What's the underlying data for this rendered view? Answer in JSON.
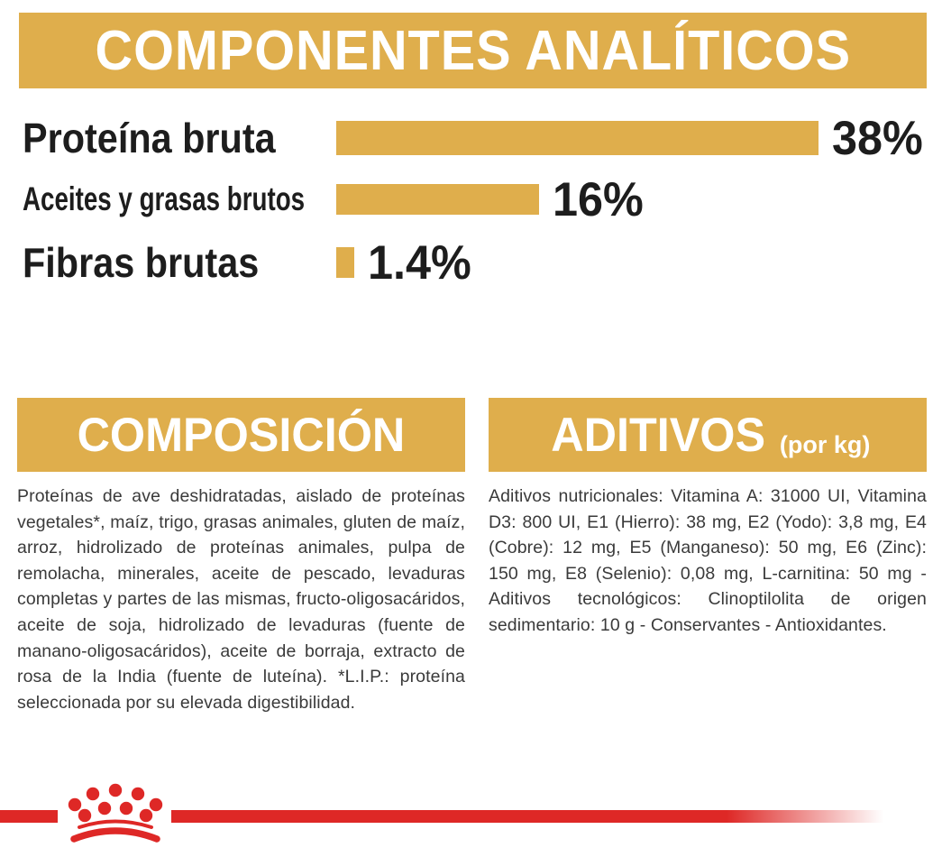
{
  "header": {
    "title": "COMPONENTES ANALÍTICOS"
  },
  "chart_data": {
    "type": "bar",
    "orientation": "horizontal",
    "categories": [
      "Proteína bruta",
      "Aceites y grasas brutos",
      "Fibras brutas"
    ],
    "values": [
      38,
      16,
      1.4
    ],
    "value_labels": [
      "38%",
      "16%",
      "1.4%"
    ],
    "xlim": [
      0,
      38
    ],
    "bar_color": "#DFAE4C",
    "grid": false,
    "legend": false,
    "title": "COMPONENTES ANALÍTICOS"
  },
  "sections": {
    "composicion": {
      "title": "COMPOSICIÓN",
      "body": "Proteínas de ave deshidratadas, aislado de proteínas vegetales*, maíz, trigo, grasas animales, gluten de maíz, arroz, hidrolizado de proteínas animales, pulpa de remolacha, minerales, aceite de pescado, levaduras completas y partes de las mismas, fructo-oligosacáridos, aceite de soja, hidrolizado de levaduras (fuente de manano-oligosacáridos), aceite de borraja, extracto de rosa de la India (fuente de luteína). *L.I.P.: proteína seleccionada por su elevada digestibilidad."
    },
    "aditivos": {
      "title": "ADITIVOS",
      "unit_note": "(por kg)",
      "body": "Aditivos nutricionales: Vitamina A: 31000 UI, Vitamina D3: 800 UI, E1 (Hierro): 38 mg, E2 (Yodo): 3,8 mg, E4 (Cobre): 12 mg, E5 (Manganeso): 50 mg, E6 (Zinc): 150 mg, E8 (Selenio): 0,08 mg, L-carnitina: 50 mg - Aditivos tecnológicos: Clinoptilolita de origen sedimentario: 10 g - Conservantes - Antioxidantes."
    }
  },
  "footer": {
    "logo": "royal-canin-crown-icon"
  },
  "colors": {
    "gold": "#DFAE4C",
    "red": "#DE2826",
    "heading_text": "#FFFFFF",
    "label_text": "#1D1D1D",
    "body_text": "#3A3A3A"
  }
}
